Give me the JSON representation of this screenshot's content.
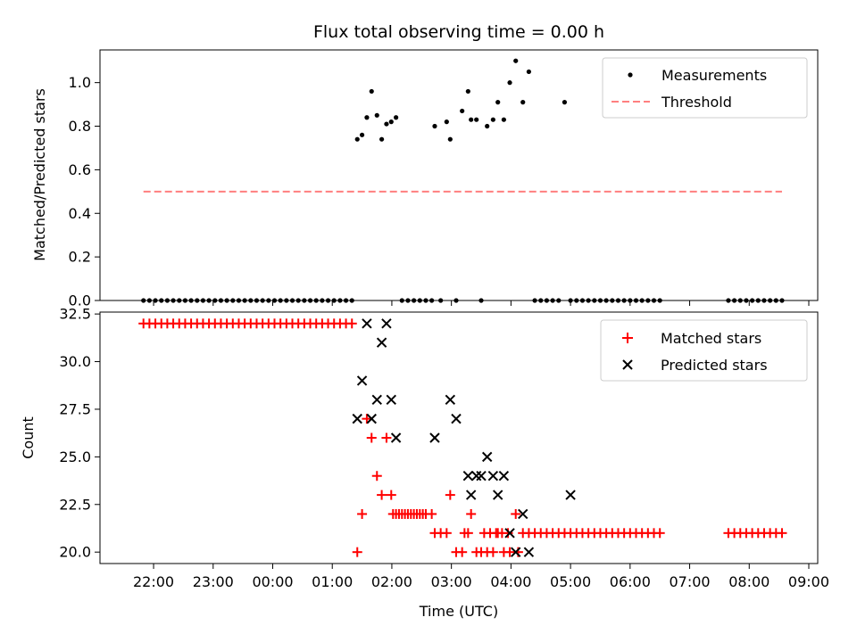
{
  "chart_data": [
    {
      "type": "scatter",
      "title": "Flux total observing time = 0.00 h",
      "ylabel": "Matched/Predicted stars",
      "xlabel": "",
      "ylim": [
        0,
        1.15
      ],
      "yticks": [
        0.0,
        0.2,
        0.4,
        0.6,
        0.8,
        1.0
      ],
      "ytick_labels": [
        "0.0",
        "0.2",
        "0.4",
        "0.6",
        "0.8",
        "1.0"
      ],
      "legend_position": "top-right",
      "series": [
        {
          "name": "Measurements",
          "kind": "points",
          "color": "#000000",
          "x_hours": [
            21.83,
            21.93,
            22.03,
            22.13,
            22.23,
            22.33,
            22.43,
            22.53,
            22.63,
            22.73,
            22.83,
            22.93,
            23.03,
            23.13,
            23.23,
            23.33,
            23.43,
            23.53,
            23.63,
            23.73,
            23.83,
            23.93,
            24.03,
            24.13,
            24.23,
            24.33,
            24.43,
            24.53,
            24.63,
            24.73,
            24.83,
            24.93,
            25.03,
            25.13,
            25.23,
            25.33,
            25.42,
            25.5,
            25.58,
            25.66,
            25.75,
            25.83,
            25.91,
            25.99,
            26.07,
            26.17,
            26.27,
            26.37,
            26.47,
            26.57,
            26.67,
            26.72,
            26.82,
            26.92,
            26.98,
            27.08,
            27.18,
            27.28,
            27.33,
            27.42,
            27.5,
            27.6,
            27.7,
            27.78,
            27.88,
            27.98,
            28.08,
            28.2,
            28.3,
            28.4,
            28.5,
            28.6,
            28.7,
            28.8,
            28.9,
            29.0,
            29.1,
            29.2,
            29.3,
            29.4,
            29.5,
            29.6,
            29.7,
            29.8,
            29.9,
            30.0,
            30.1,
            30.2,
            30.3,
            30.4,
            30.5,
            31.65,
            31.75,
            31.85,
            31.95,
            32.05,
            32.15,
            32.25,
            32.35,
            32.45,
            32.55
          ],
          "y": [
            0,
            0,
            0,
            0,
            0,
            0,
            0,
            0,
            0,
            0,
            0,
            0,
            0,
            0,
            0,
            0,
            0,
            0,
            0,
            0,
            0,
            0,
            0,
            0,
            0,
            0,
            0,
            0,
            0,
            0,
            0,
            0,
            0,
            0,
            0,
            0,
            0.74,
            0.76,
            0.84,
            0.96,
            0.85,
            0.74,
            0.81,
            0.82,
            0.84,
            0,
            0,
            0,
            0,
            0,
            0,
            0.8,
            0,
            0.82,
            0.74,
            0,
            0.87,
            0.96,
            0.83,
            0.83,
            0,
            0.8,
            0.83,
            0.91,
            0.83,
            1.0,
            1.1,
            0.91,
            1.05,
            0,
            0,
            0,
            0,
            0,
            0.91,
            0,
            0,
            0,
            0,
            0,
            0,
            0,
            0,
            0,
            0,
            0,
            0,
            0,
            0,
            0,
            0,
            0,
            0,
            0,
            0,
            0,
            0,
            0,
            0,
            0,
            0
          ]
        },
        {
          "name": "Threshold",
          "kind": "dashed-line",
          "color": "#ff7f7f",
          "x_hours": [
            21.83,
            32.55
          ],
          "y": [
            0.5,
            0.5
          ]
        }
      ]
    },
    {
      "type": "scatter",
      "title": "",
      "ylabel": "Count",
      "xlabel": "Time (UTC)",
      "ylim": [
        19.4,
        32.6
      ],
      "yticks": [
        20.0,
        22.5,
        25.0,
        27.5,
        30.0,
        32.5
      ],
      "ytick_labels": [
        "20.0",
        "22.5",
        "25.0",
        "27.5",
        "30.0",
        "32.5"
      ],
      "x_axis": {
        "xlim_hours": [
          21.1,
          33.15
        ],
        "tick_hours": [
          22,
          23,
          24,
          25,
          26,
          27,
          28,
          29,
          30,
          31,
          32,
          33
        ],
        "tick_labels": [
          "22:00",
          "23:00",
          "00:00",
          "01:00",
          "02:00",
          "03:00",
          "04:00",
          "05:00",
          "06:00",
          "07:00",
          "08:00",
          "09:00"
        ]
      },
      "legend_position": "top-right",
      "series": [
        {
          "name": "Matched stars",
          "marker": "plus",
          "color": "#ff0000",
          "x_hours": [
            21.83,
            21.93,
            22.03,
            22.13,
            22.23,
            22.33,
            22.43,
            22.53,
            22.63,
            22.73,
            22.83,
            22.93,
            23.03,
            23.13,
            23.23,
            23.33,
            23.43,
            23.53,
            23.63,
            23.73,
            23.83,
            23.93,
            24.03,
            24.13,
            24.23,
            24.33,
            24.43,
            24.53,
            24.63,
            24.73,
            24.83,
            24.93,
            25.03,
            25.13,
            25.23,
            25.33,
            25.42,
            25.5,
            25.58,
            25.66,
            25.75,
            25.83,
            25.91,
            25.99,
            26.07,
            26.17,
            26.27,
            26.37,
            26.47,
            26.57,
            26.67,
            26.72,
            26.82,
            26.92,
            26.98,
            27.08,
            27.18,
            27.28,
            27.33,
            27.42,
            27.5,
            27.6,
            27.7,
            27.78,
            27.88,
            27.98,
            28.08,
            28.2,
            28.3,
            28.4,
            28.5,
            28.6,
            28.7,
            28.8,
            28.9,
            29.0,
            29.1,
            29.2,
            29.3,
            29.4,
            29.5,
            29.6,
            29.7,
            29.8,
            29.9,
            30.0,
            30.1,
            30.2,
            30.3,
            30.4,
            30.5,
            31.65,
            31.75,
            31.85,
            31.95,
            32.05,
            32.15,
            32.25,
            32.35,
            32.45,
            32.55,
            26.02,
            26.12,
            26.22,
            26.32,
            26.42,
            26.52,
            27.22,
            27.55,
            27.65,
            27.75,
            27.85,
            27.95,
            28.12
          ],
          "y": [
            32,
            32,
            32,
            32,
            32,
            32,
            32,
            32,
            32,
            32,
            32,
            32,
            32,
            32,
            32,
            32,
            32,
            32,
            32,
            32,
            32,
            32,
            32,
            32,
            32,
            32,
            32,
            32,
            32,
            32,
            32,
            32,
            32,
            32,
            32,
            32,
            20,
            22,
            27,
            26,
            24,
            23,
            26,
            23,
            22,
            22,
            22,
            22,
            22,
            22,
            22,
            21,
            21,
            21,
            23,
            20,
            20,
            21,
            22,
            20,
            20,
            20,
            20,
            21,
            20,
            20,
            22,
            21,
            21,
            21,
            21,
            21,
            21,
            21,
            21,
            21,
            21,
            21,
            21,
            21,
            21,
            21,
            21,
            21,
            21,
            21,
            21,
            21,
            21,
            21,
            21,
            21,
            21,
            21,
            21,
            21,
            21,
            21,
            21,
            21,
            21,
            22,
            22,
            22,
            22,
            22,
            22,
            21,
            21,
            21,
            21,
            21,
            21,
            20
          ]
        },
        {
          "name": "Predicted stars",
          "marker": "x",
          "color": "#000000",
          "x_hours": [
            25.42,
            25.5,
            25.58,
            25.66,
            25.75,
            25.83,
            25.91,
            25.99,
            26.07,
            26.72,
            26.98,
            27.08,
            27.28,
            27.33,
            27.42,
            27.5,
            27.6,
            27.7,
            27.78,
            27.88,
            27.98,
            28.08,
            28.2,
            28.3,
            29.0
          ],
          "y": [
            27,
            29,
            32,
            27,
            28,
            31,
            32,
            28,
            26,
            26,
            28,
            27,
            24,
            23,
            24,
            24,
            25,
            24,
            23,
            24,
            21,
            20,
            22,
            20,
            23
          ]
        }
      ]
    }
  ]
}
